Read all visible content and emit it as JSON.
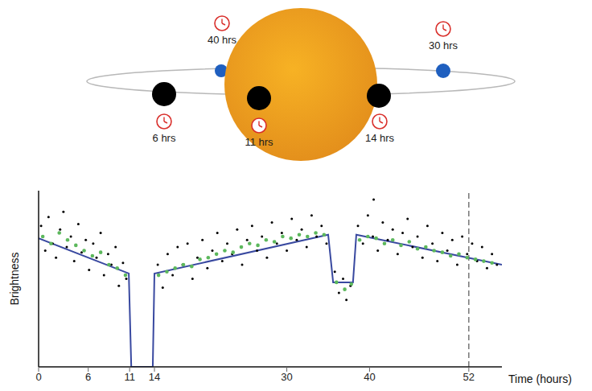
{
  "diagram": {
    "star_color": "#f7b224",
    "orbit": true,
    "positions": [
      {
        "label": "6 hrs",
        "planet_color": "#000000"
      },
      {
        "label": "11 hrs",
        "planet_color": "#000000"
      },
      {
        "label": "14 hrs",
        "planet_color": "#000000"
      },
      {
        "label": "30 hrs",
        "planet_color": "#1f5fbf"
      },
      {
        "label": "40 hrs",
        "planet_color": "#1f5fbf"
      }
    ]
  },
  "chart_data": {
    "type": "line",
    "x_label": "Time (hours)",
    "y_label": "Brightness",
    "xlim": [
      0,
      56
    ],
    "xticks": [
      0,
      6,
      11,
      14,
      30,
      40,
      52
    ],
    "ylim": [
      0,
      100
    ],
    "tick_labels": "x",
    "grid": false,
    "annotations": [
      {
        "x": 52,
        "line_style": "dashed"
      }
    ],
    "series": [
      {
        "type": "scatter",
        "color": "#000000",
        "marker": "circle",
        "x": [
          0.3,
          0.8,
          1.2,
          1.7,
          2.1,
          2.6,
          3.0,
          3.4,
          3.9,
          4.3,
          4.8,
          5.2,
          5.7,
          6.1,
          6.6,
          7.0,
          7.5,
          7.9,
          8.4,
          8.8,
          9.3,
          9.7,
          10.2,
          10.6,
          14.4,
          15.0,
          15.6,
          16.2,
          16.8,
          17.4,
          18.0,
          18.6,
          19.2,
          19.8,
          20.4,
          21.0,
          21.6,
          22.2,
          22.8,
          23.4,
          24.0,
          24.6,
          25.2,
          25.8,
          26.4,
          27.0,
          27.6,
          28.2,
          28.8,
          29.4,
          30.0,
          30.6,
          31.2,
          31.8,
          32.4,
          33.0,
          33.6,
          34.2,
          34.8,
          35.8,
          36.3,
          36.8,
          37.2,
          37.7,
          38.6,
          39.2,
          39.8,
          40.4,
          40.5,
          41.0,
          41.6,
          42.2,
          42.8,
          43.4,
          44.0,
          44.6,
          45.2,
          45.8,
          46.4,
          47.0,
          47.6,
          48.2,
          48.8,
          49.4,
          50.0,
          50.6,
          51.2,
          51.8,
          52.4,
          53.0,
          53.6,
          54.2,
          54.8,
          55.4
        ],
        "values": [
          80,
          66,
          85,
          70,
          62,
          78,
          88,
          68,
          74,
          60,
          81,
          65,
          72,
          55,
          70,
          62,
          76,
          52,
          64,
          58,
          68,
          46,
          59,
          50,
          58,
          45,
          64,
          52,
          68,
          58,
          70,
          50,
          62,
          72,
          56,
          66,
          76,
          60,
          70,
          64,
          78,
          58,
          72,
          80,
          66,
          74,
          62,
          82,
          70,
          76,
          66,
          84,
          72,
          78,
          68,
          86,
          74,
          80,
          70,
          54,
          42,
          50,
          38,
          46,
          80,
          70,
          86,
          74,
          95,
          66,
          82,
          72,
          78,
          64,
          76,
          84,
          68,
          74,
          62,
          80,
          70,
          60,
          76,
          66,
          72,
          58,
          74,
          64,
          70,
          60,
          68,
          56,
          64,
          58
        ]
      },
      {
        "type": "scatter",
        "color": "#5cb85c",
        "marker": "circle",
        "x": [
          0.5,
          1.5,
          2.5,
          3.5,
          4.5,
          5.5,
          6.5,
          7.5,
          8.5,
          9.5,
          10.5,
          14.5,
          15.5,
          16.5,
          17.5,
          18.5,
          19.5,
          20.5,
          21.5,
          22.5,
          23.5,
          24.5,
          25.5,
          26.5,
          27.5,
          28.5,
          29.5,
          30.5,
          31.5,
          32.5,
          33.5,
          34.5,
          36.0,
          37.0,
          37.8,
          38.8,
          39.8,
          40.8,
          41.8,
          42.8,
          43.8,
          44.8,
          45.8,
          46.8,
          47.8,
          48.8,
          49.8,
          50.8,
          51.8,
          52.8,
          53.8,
          54.8
        ],
        "values": [
          74,
          70,
          76,
          72,
          69,
          66,
          63,
          65,
          58,
          56,
          52,
          52,
          54,
          56,
          58,
          57,
          61,
          62,
          64,
          66,
          65,
          68,
          70,
          69,
          72,
          71,
          74,
          73,
          75,
          74,
          76,
          75,
          48,
          44,
          47,
          72,
          74,
          73,
          70,
          72,
          69,
          71,
          67,
          68,
          66,
          65,
          63,
          64,
          62,
          61,
          60,
          59
        ]
      },
      {
        "type": "line",
        "color": "#3949a0",
        "line_style": "solid",
        "x": [
          0,
          10.9,
          11.2,
          13.8,
          14.0,
          35.0,
          35.6,
          38.0,
          38.4,
          56
        ],
        "values": [
          73,
          53,
          0,
          0,
          53,
          75,
          48,
          48,
          75,
          58
        ]
      }
    ]
  }
}
